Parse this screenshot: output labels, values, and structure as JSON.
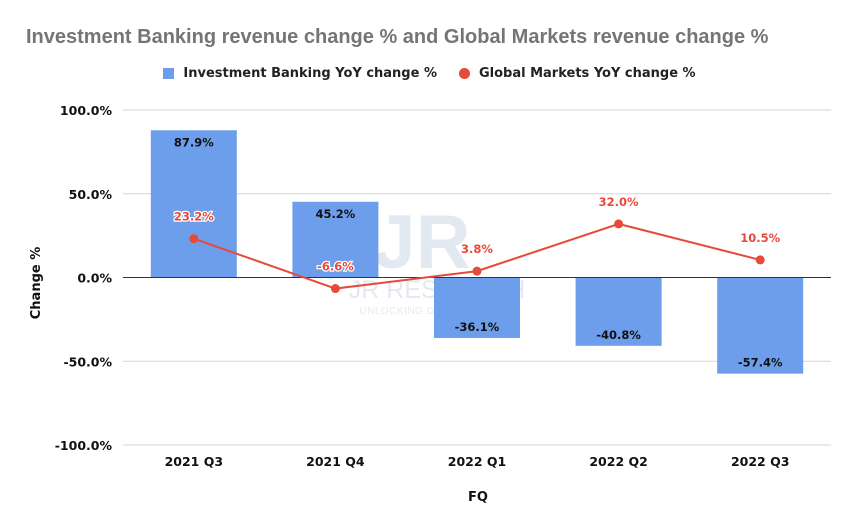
{
  "title": "Investment Banking revenue change % and Global Markets revenue change %",
  "legend": {
    "bar_label": "Investment Banking YoY change %",
    "line_label": "Global Markets YoY change %"
  },
  "watermark": {
    "logo": "JR",
    "name": "JR RESEARCH",
    "tagline": "UNLOCKING OPPORTUNITIES"
  },
  "chart_data": {
    "type": "bar",
    "title": "Investment Banking revenue change % and Global Markets revenue change %",
    "xlabel": "FQ",
    "ylabel": "Change %",
    "categories": [
      "2021 Q3",
      "2021 Q4",
      "2022 Q1",
      "2022 Q2",
      "2022 Q3"
    ],
    "ylim": [
      -100,
      100
    ],
    "yticks": [
      100,
      50,
      0,
      -50,
      -100
    ],
    "ytick_labels": [
      "100.0%",
      "50.0%",
      "0.0%",
      "-50.0%",
      "-100.0%"
    ],
    "grid": true,
    "legend_position": "top",
    "series": [
      {
        "name": "Investment Banking YoY change %",
        "kind": "bar",
        "color": "#6d9eeb",
        "values": [
          87.9,
          45.2,
          -36.1,
          -40.8,
          -57.4
        ],
        "labels": [
          "87.9%",
          "45.2%",
          "-36.1%",
          "-40.8%",
          "-57.4%"
        ]
      },
      {
        "name": "Global Markets YoY change %",
        "kind": "line",
        "color": "#e64a3b",
        "values": [
          23.2,
          -6.6,
          3.8,
          32.0,
          10.5
        ],
        "labels": [
          "23.2%",
          "-6.6%",
          "3.8%",
          "32.0%",
          "10.5%"
        ]
      }
    ]
  }
}
